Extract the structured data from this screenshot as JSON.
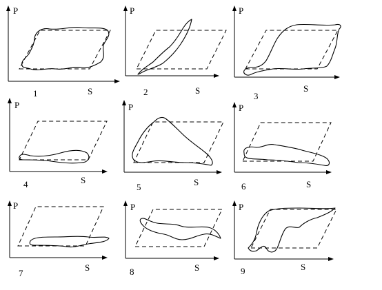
{
  "axis_labels": {
    "y": "P",
    "x": "S"
  },
  "panels": [
    {
      "number": "1",
      "shape": "wide-loop"
    },
    {
      "number": "2",
      "shape": "narrow-diagonal-loop"
    },
    {
      "number": "3",
      "shape": "s-shaped-loop"
    },
    {
      "number": "4",
      "shape": "thin-flat-loop"
    },
    {
      "number": "5",
      "shape": "triangular-loop"
    },
    {
      "number": "6",
      "shape": "flat-low-loop"
    },
    {
      "number": "7",
      "shape": "thin-flat-loop"
    },
    {
      "number": "8",
      "shape": "twisted-loop"
    },
    {
      "number": "9",
      "shape": "asymmetric-loop"
    }
  ]
}
